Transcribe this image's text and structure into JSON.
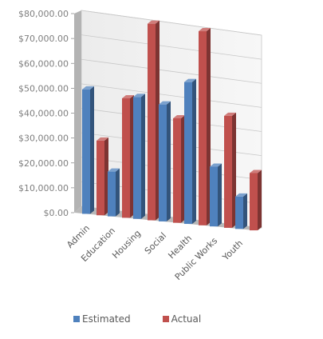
{
  "chart_data": {
    "type": "bar",
    "categories": [
      "Admin",
      "Education",
      "Housing",
      "Social",
      "Health",
      "Public Works",
      "Youth"
    ],
    "series": [
      {
        "name": "Estimated",
        "values": [
          50000,
          18000,
          49000,
          47000,
          57000,
          24000,
          13000
        ],
        "color": "#4f81bd"
      },
      {
        "name": "Actual",
        "values": [
          30000,
          48000,
          79000,
          42000,
          78000,
          45000,
          23000
        ],
        "color": "#c0504d"
      }
    ],
    "ylim": [
      0,
      80000
    ],
    "yticks": [
      "$0.00",
      "$10,000.00",
      "$20,000.00",
      "$30,000.00",
      "$40,000.00",
      "$50,000.00",
      "$60,000.00",
      "$70,000.00",
      "$80,000.00"
    ],
    "grid": true,
    "legend": "bottom",
    "title": "",
    "xlabel": "",
    "ylabel": ""
  }
}
